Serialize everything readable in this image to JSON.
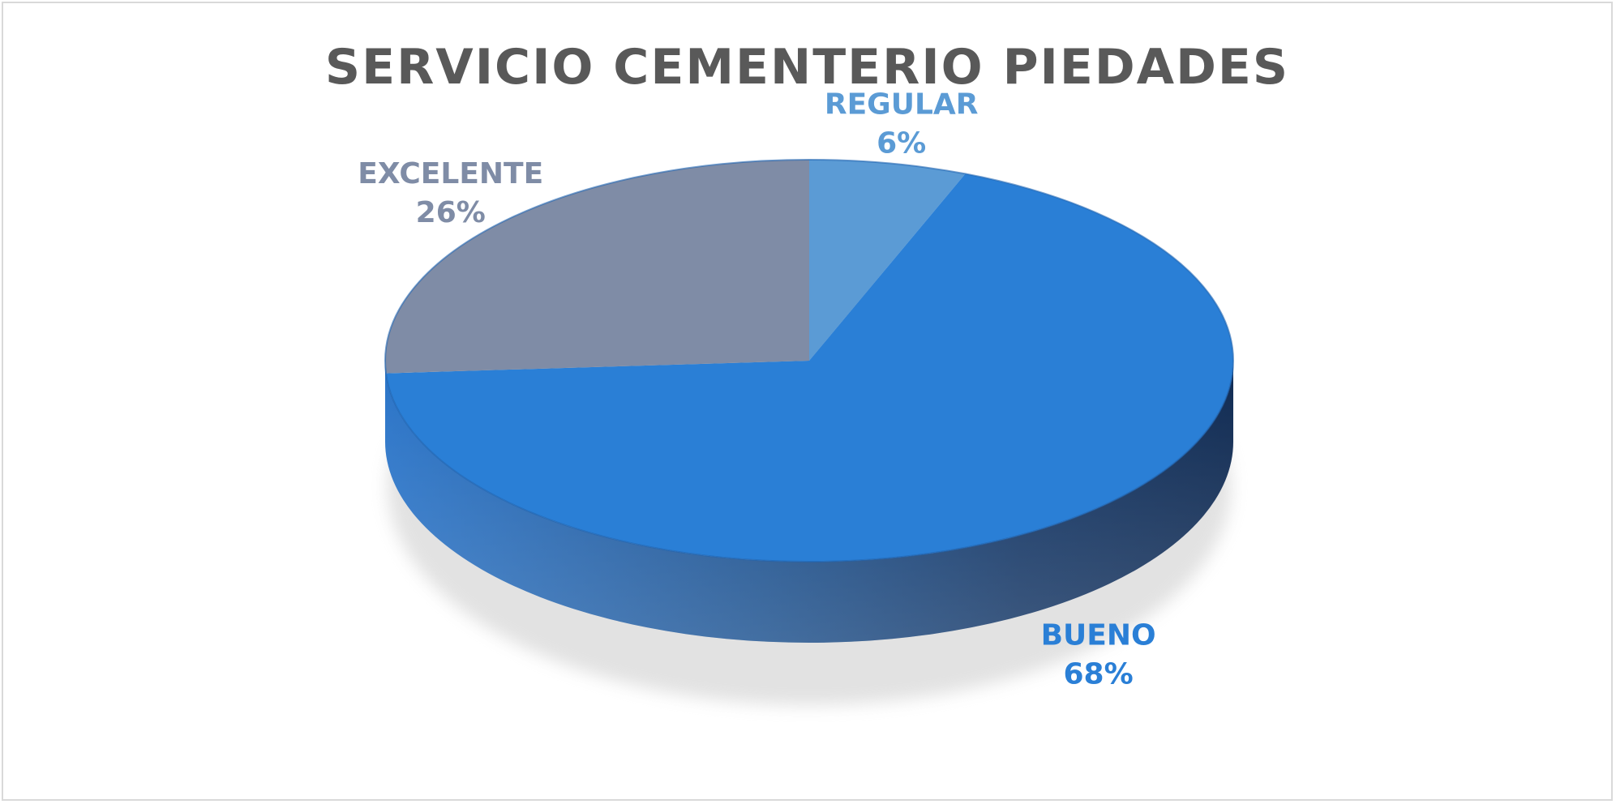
{
  "chart_data": {
    "type": "pie",
    "title": "SERVICIO CEMENTERIO PIEDADES",
    "slices": [
      {
        "label": "REGULAR",
        "value": 6,
        "display": "6%",
        "color": "#5b9bd5",
        "side_color": "#3f78ad"
      },
      {
        "label": "BUENO",
        "value": 68,
        "display": "68%",
        "color": "#2a7fd6",
        "side_color": "#1d5a9c"
      },
      {
        "label": "EXCELENTE",
        "value": 26,
        "display": "26%",
        "color": "#7f8ca6",
        "side_color": "#5e6a82"
      }
    ],
    "legend": "none",
    "style": "3d"
  }
}
